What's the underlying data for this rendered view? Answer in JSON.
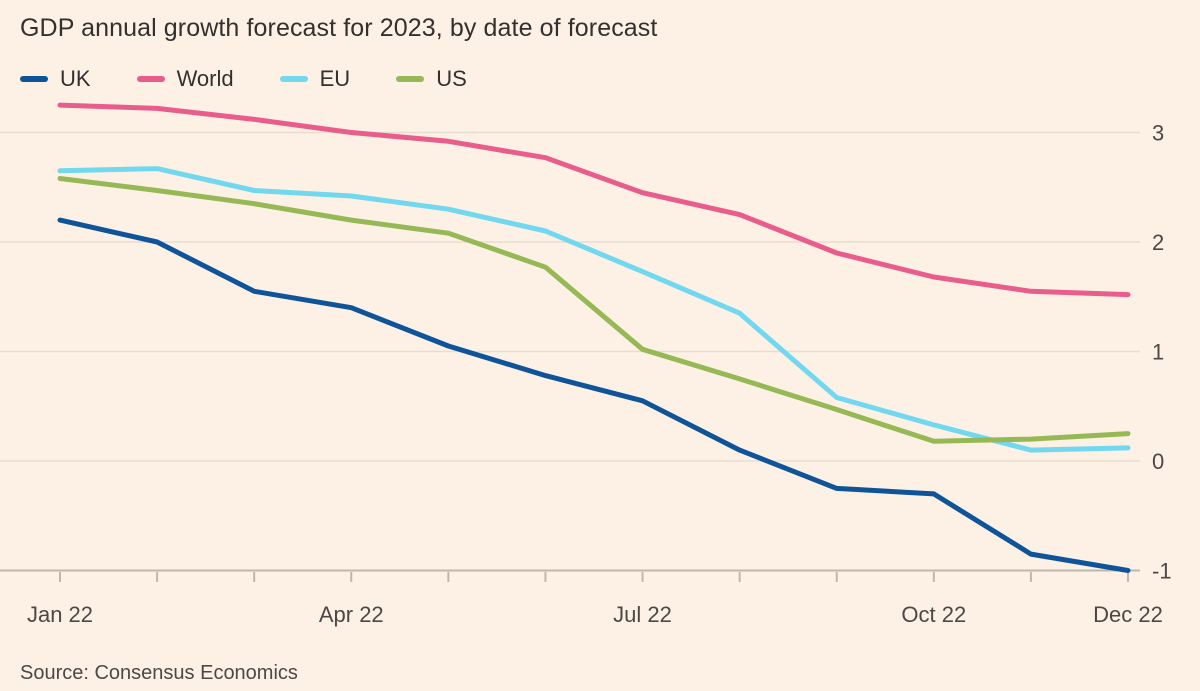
{
  "chart_data": {
    "type": "line",
    "title": "GDP annual growth forecast for 2023, by date of forecast",
    "source": "Source: Consensus Economics",
    "xlabel": "",
    "ylabel": "",
    "ylim": [
      -1,
      3.3
    ],
    "yticks": [
      {
        "value": 3,
        "label": "3"
      },
      {
        "value": 2,
        "label": "2"
      },
      {
        "value": 1,
        "label": "1"
      },
      {
        "value": 0,
        "label": "0"
      },
      {
        "value": -1,
        "label": "-1"
      }
    ],
    "x": [
      "Jan 22",
      "Feb 22",
      "Mar 22",
      "Apr 22",
      "May 22",
      "Jun 22",
      "Jul 22",
      "Aug 22",
      "Sep 22",
      "Oct 22",
      "Nov 22",
      "Dec 22"
    ],
    "xtick_labels": [
      {
        "index": 0,
        "label": "Jan 22"
      },
      {
        "index": 3,
        "label": "Apr 22"
      },
      {
        "index": 6,
        "label": "Jul 22"
      },
      {
        "index": 9,
        "label": "Oct 22"
      },
      {
        "index": 11,
        "label": "Dec 22"
      }
    ],
    "series": [
      {
        "name": "UK",
        "color": "#0f5499",
        "values": [
          2.2,
          2.0,
          1.55,
          1.4,
          1.05,
          0.78,
          0.55,
          0.1,
          -0.25,
          -0.3,
          -0.85,
          -1.0
        ]
      },
      {
        "name": "World",
        "color": "#e95d8c",
        "values": [
          3.25,
          3.22,
          3.12,
          3.0,
          2.92,
          2.77,
          2.45,
          2.25,
          1.9,
          1.68,
          1.55,
          1.52
        ]
      },
      {
        "name": "EU",
        "color": "#72d8ef",
        "values": [
          2.65,
          2.67,
          2.47,
          2.42,
          2.3,
          2.1,
          1.73,
          1.35,
          0.58,
          0.33,
          0.1,
          0.12
        ]
      },
      {
        "name": "US",
        "color": "#96b956",
        "values": [
          2.58,
          2.47,
          2.35,
          2.2,
          2.08,
          1.77,
          1.02,
          0.75,
          0.47,
          0.18,
          0.2,
          0.25
        ]
      }
    ],
    "grid": true,
    "legend_position": "top-left"
  }
}
